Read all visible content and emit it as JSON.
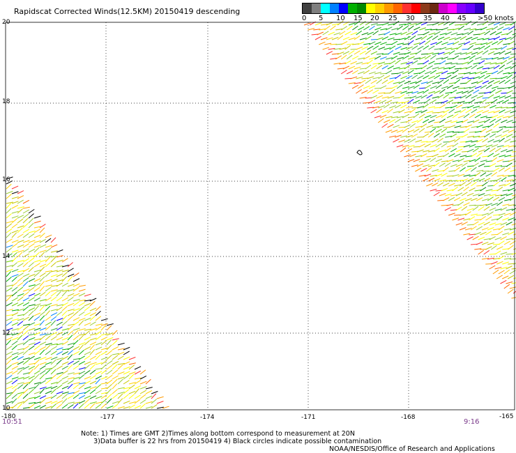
{
  "title": "Rapidscat Corrected Winds(12.5KM) 20150419 descending",
  "legend": {
    "colors": [
      "#404040",
      "#7f7f7f",
      "#00ffff",
      "#0080ff",
      "#0000ff",
      "#00b000",
      "#008800",
      "#ffff00",
      "#ffd000",
      "#ff9900",
      "#ff6600",
      "#ff3030",
      "#ff0000",
      "#8b3a1a",
      "#6b2a12",
      "#cc00cc",
      "#ff00ff",
      "#8800ff",
      "#6600ff",
      "#3300cc"
    ],
    "labels": [
      "0",
      "5",
      "10",
      "15",
      "20",
      "25",
      "30",
      "35",
      "40",
      "45",
      ">50 knots"
    ]
  },
  "axes": {
    "lat_labels": [
      "20",
      "18",
      "16",
      "14",
      "12",
      "10"
    ],
    "lon_labels": [
      "-180",
      "-177",
      "-174",
      "-171",
      "-168",
      "-165"
    ]
  },
  "times": {
    "left": "10:51",
    "right": "9:16"
  },
  "notes": {
    "line1": "Note: 1) Times are GMT 2)Times along bottom correspond to measurement at 20N",
    "line2": "      3)Data buffer is 22 hrs from 20150419 4) Black circles indicate possible contamination"
  },
  "credit": "NOAA/NESDIS/Office of Research and Applications",
  "swath_colors": {
    "edge": [
      "#ff3030",
      "#ff6600",
      "#ff9900"
    ],
    "mid": [
      "#ffd000",
      "#ffff00",
      "#c8c800",
      "#9acd32"
    ],
    "inner": [
      "#00b000",
      "#008800",
      "#33aa33",
      "#66cc00"
    ],
    "low": [
      "#0000ff",
      "#0080ff"
    ]
  }
}
